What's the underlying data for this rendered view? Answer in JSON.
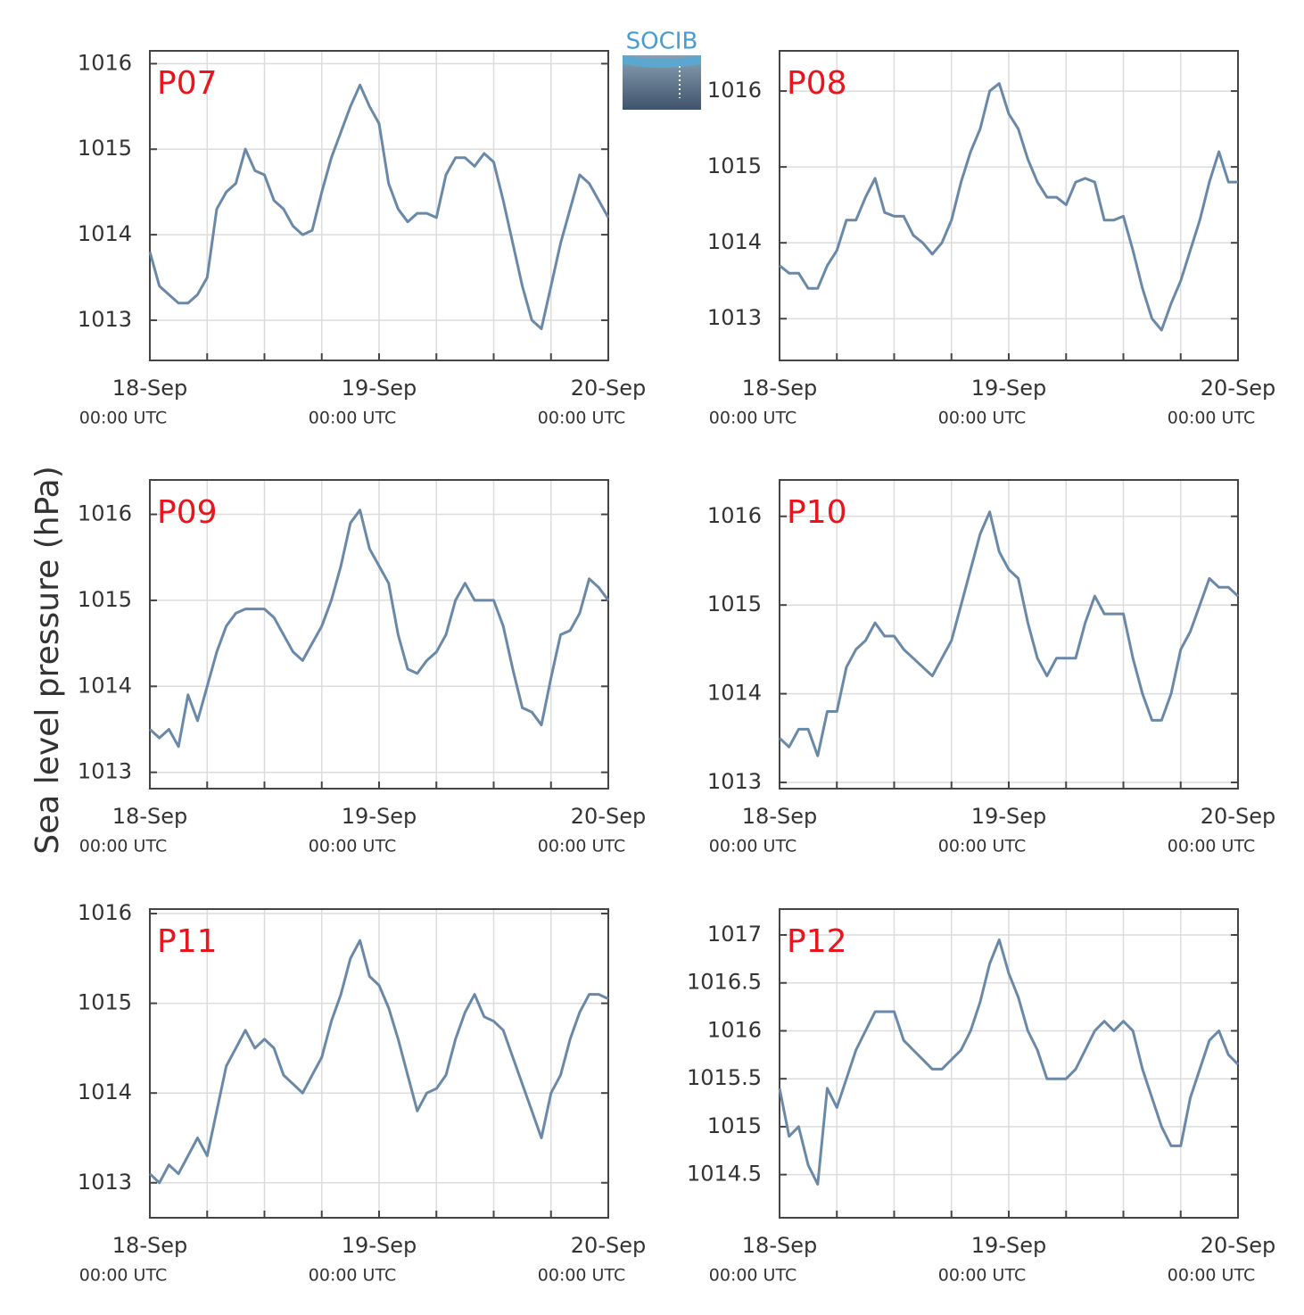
{
  "y_axis_label": "Sea level pressure (hPa)",
  "logo": "SOCIB",
  "chart_data": [
    {
      "type": "line",
      "title": "P07",
      "x": [
        0,
        1,
        2,
        3,
        4,
        5,
        6,
        7,
        8,
        9,
        10,
        11,
        12,
        13,
        14,
        15,
        16,
        17,
        18,
        19,
        20,
        21,
        22,
        23,
        24,
        25,
        26,
        27,
        28,
        29,
        30,
        31,
        32,
        33,
        34,
        35,
        36,
        37,
        38,
        39,
        40,
        41,
        42,
        43,
        44,
        45,
        46,
        47,
        48
      ],
      "series": [
        {
          "color": "#6a88a8",
          "values": [
            1013.8,
            1013.4,
            1013.3,
            1013.2,
            1013.2,
            1013.3,
            1013.5,
            1014.3,
            1014.5,
            1014.6,
            1015.0,
            1014.75,
            1014.7,
            1014.4,
            1014.3,
            1014.1,
            1014.0,
            1014.05,
            1014.5,
            1014.9,
            1015.2,
            1015.5,
            1015.75,
            1015.5,
            1015.3,
            1014.6,
            1014.3,
            1014.15,
            1014.25,
            1014.25,
            1014.2,
            1014.7,
            1014.9,
            1014.9,
            1014.8,
            1014.95,
            1014.85,
            1014.4,
            1013.9,
            1013.4,
            1013.0,
            1012.9,
            1013.4,
            1013.9,
            1014.3,
            1014.7,
            1014.6,
            1014.4,
            1014.2
          ]
        }
      ],
      "xlim": [
        0,
        48
      ],
      "xticks": [
        {
          "value": 0,
          "label": "18-Sep"
        },
        {
          "value": 24,
          "label": "19-Sep"
        },
        {
          "value": 48,
          "label": "20-Sep"
        }
      ],
      "xtick_sublabel": "00:00 UTC",
      "xminor": [
        6,
        12,
        18,
        30,
        36,
        42
      ],
      "ylim": [
        1012.53,
        1016.15
      ],
      "yticks": [
        1013,
        1014,
        1015,
        1016
      ],
      "grid": true
    },
    {
      "type": "line",
      "title": "P08",
      "x": [
        0,
        1,
        2,
        3,
        4,
        5,
        6,
        7,
        8,
        9,
        10,
        11,
        12,
        13,
        14,
        15,
        16,
        17,
        18,
        19,
        20,
        21,
        22,
        23,
        24,
        25,
        26,
        27,
        28,
        29,
        30,
        31,
        32,
        33,
        34,
        35,
        36,
        37,
        38,
        39,
        40,
        41,
        42,
        43,
        44,
        45,
        46,
        47,
        48
      ],
      "series": [
        {
          "color": "#6a88a8",
          "values": [
            1013.7,
            1013.6,
            1013.6,
            1013.4,
            1013.4,
            1013.7,
            1013.9,
            1014.3,
            1014.3,
            1014.6,
            1014.85,
            1014.4,
            1014.35,
            1014.35,
            1014.1,
            1014.0,
            1013.85,
            1014.0,
            1014.3,
            1014.8,
            1015.2,
            1015.5,
            1016.0,
            1016.1,
            1015.7,
            1015.5,
            1015.1,
            1014.8,
            1014.6,
            1014.6,
            1014.5,
            1014.8,
            1014.85,
            1014.8,
            1014.3,
            1014.3,
            1014.35,
            1013.9,
            1013.4,
            1013.0,
            1012.85,
            1013.2,
            1013.5,
            1013.9,
            1014.3,
            1014.8,
            1015.2,
            1014.8,
            1014.8
          ]
        }
      ],
      "xlim": [
        0,
        48
      ],
      "xticks": [
        {
          "value": 0,
          "label": "18-Sep"
        },
        {
          "value": 24,
          "label": "19-Sep"
        },
        {
          "value": 48,
          "label": "20-Sep"
        }
      ],
      "xtick_sublabel": "00:00 UTC",
      "xminor": [
        6,
        12,
        18,
        30,
        36,
        42
      ],
      "ylim": [
        1012.45,
        1016.53
      ],
      "yticks": [
        1013,
        1014,
        1015,
        1016
      ],
      "grid": true
    },
    {
      "type": "line",
      "title": "P09",
      "x": [
        0,
        1,
        2,
        3,
        4,
        5,
        6,
        7,
        8,
        9,
        10,
        11,
        12,
        13,
        14,
        15,
        16,
        17,
        18,
        19,
        20,
        21,
        22,
        23,
        24,
        25,
        26,
        27,
        28,
        29,
        30,
        31,
        32,
        33,
        34,
        35,
        36,
        37,
        38,
        39,
        40,
        41,
        42,
        43,
        44,
        45,
        46,
        47,
        48
      ],
      "series": [
        {
          "color": "#6a88a8",
          "values": [
            1013.5,
            1013.4,
            1013.5,
            1013.3,
            1013.9,
            1013.6,
            1014.0,
            1014.4,
            1014.7,
            1014.85,
            1014.9,
            1014.9,
            1014.9,
            1014.8,
            1014.6,
            1014.4,
            1014.3,
            1014.5,
            1014.7,
            1015.0,
            1015.4,
            1015.9,
            1016.05,
            1015.6,
            1015.4,
            1015.2,
            1014.6,
            1014.2,
            1014.15,
            1014.3,
            1014.4,
            1014.6,
            1015.0,
            1015.2,
            1015.0,
            1015.0,
            1015.0,
            1014.7,
            1014.2,
            1013.75,
            1013.7,
            1013.55,
            1014.1,
            1014.6,
            1014.65,
            1014.85,
            1015.25,
            1015.15,
            1015.0
          ]
        }
      ],
      "xlim": [
        0,
        48
      ],
      "xticks": [
        {
          "value": 0,
          "label": "18-Sep"
        },
        {
          "value": 24,
          "label": "19-Sep"
        },
        {
          "value": 48,
          "label": "20-Sep"
        }
      ],
      "xtick_sublabel": "00:00 UTC",
      "xminor": [
        6,
        12,
        18,
        30,
        36,
        42
      ],
      "ylim": [
        1012.81,
        1016.4
      ],
      "yticks": [
        1013,
        1014,
        1015,
        1016
      ],
      "grid": true
    },
    {
      "type": "line",
      "title": "P10",
      "x": [
        0,
        1,
        2,
        3,
        4,
        5,
        6,
        7,
        8,
        9,
        10,
        11,
        12,
        13,
        14,
        15,
        16,
        17,
        18,
        19,
        20,
        21,
        22,
        23,
        24,
        25,
        26,
        27,
        28,
        29,
        30,
        31,
        32,
        33,
        34,
        35,
        36,
        37,
        38,
        39,
        40,
        41,
        42,
        43,
        44,
        45,
        46,
        47,
        48
      ],
      "series": [
        {
          "color": "#6a88a8",
          "values": [
            1013.5,
            1013.4,
            1013.6,
            1013.6,
            1013.3,
            1013.8,
            1013.8,
            1014.3,
            1014.5,
            1014.6,
            1014.8,
            1014.65,
            1014.65,
            1014.5,
            1014.4,
            1014.3,
            1014.2,
            1014.4,
            1014.6,
            1015.0,
            1015.4,
            1015.8,
            1016.05,
            1015.6,
            1015.4,
            1015.3,
            1014.8,
            1014.4,
            1014.2,
            1014.4,
            1014.4,
            1014.4,
            1014.8,
            1015.1,
            1014.9,
            1014.9,
            1014.9,
            1014.4,
            1014.0,
            1013.7,
            1013.7,
            1014.0,
            1014.5,
            1014.7,
            1015.0,
            1015.3,
            1015.2,
            1015.2,
            1015.1
          ]
        }
      ],
      "xlim": [
        0,
        48
      ],
      "xticks": [
        {
          "value": 0,
          "label": "18-Sep"
        },
        {
          "value": 24,
          "label": "19-Sep"
        },
        {
          "value": 48,
          "label": "20-Sep"
        }
      ],
      "xtick_sublabel": "00:00 UTC",
      "xminor": [
        6,
        12,
        18,
        30,
        36,
        42
      ],
      "ylim": [
        1012.93,
        1016.41
      ],
      "yticks": [
        1013,
        1014,
        1015,
        1016
      ],
      "grid": true
    },
    {
      "type": "line",
      "title": "P11",
      "x": [
        0,
        1,
        2,
        3,
        4,
        5,
        6,
        7,
        8,
        9,
        10,
        11,
        12,
        13,
        14,
        15,
        16,
        17,
        18,
        19,
        20,
        21,
        22,
        23,
        24,
        25,
        26,
        27,
        28,
        29,
        30,
        31,
        32,
        33,
        34,
        35,
        36,
        37,
        38,
        39,
        40,
        41,
        42,
        43,
        44,
        45,
        46,
        47,
        48
      ],
      "series": [
        {
          "color": "#6a88a8",
          "values": [
            1013.1,
            1013.0,
            1013.2,
            1013.1,
            1013.3,
            1013.5,
            1013.3,
            1013.8,
            1014.3,
            1014.5,
            1014.7,
            1014.5,
            1014.6,
            1014.5,
            1014.2,
            1014.1,
            1014.0,
            1014.2,
            1014.4,
            1014.8,
            1015.1,
            1015.5,
            1015.7,
            1015.3,
            1015.2,
            1014.95,
            1014.6,
            1014.2,
            1013.8,
            1014.0,
            1014.05,
            1014.2,
            1014.6,
            1014.9,
            1015.1,
            1014.85,
            1014.8,
            1014.7,
            1014.4,
            1014.1,
            1013.8,
            1013.5,
            1014.0,
            1014.2,
            1014.6,
            1014.9,
            1015.1,
            1015.1,
            1015.05
          ]
        }
      ],
      "xlim": [
        0,
        48
      ],
      "xticks": [
        {
          "value": 0,
          "label": "18-Sep"
        },
        {
          "value": 24,
          "label": "19-Sep"
        },
        {
          "value": 48,
          "label": "20-Sep"
        }
      ],
      "xtick_sublabel": "00:00 UTC",
      "xminor": [
        6,
        12,
        18,
        30,
        36,
        42
      ],
      "ylim": [
        1012.61,
        1016.05
      ],
      "yticks": [
        1013,
        1014,
        1015,
        1016
      ],
      "grid": true
    },
    {
      "type": "line",
      "title": "P12",
      "x": [
        0,
        1,
        2,
        3,
        4,
        5,
        6,
        7,
        8,
        9,
        10,
        11,
        12,
        13,
        14,
        15,
        16,
        17,
        18,
        19,
        20,
        21,
        22,
        23,
        24,
        25,
        26,
        27,
        28,
        29,
        30,
        31,
        32,
        33,
        34,
        35,
        36,
        37,
        38,
        39,
        40,
        41,
        42,
        43,
        44,
        45,
        46,
        47,
        48
      ],
      "series": [
        {
          "color": "#6a88a8",
          "values": [
            1015.4,
            1014.9,
            1015.0,
            1014.6,
            1014.4,
            1015.4,
            1015.2,
            1015.5,
            1015.8,
            1016.0,
            1016.2,
            1016.2,
            1016.2,
            1015.9,
            1015.8,
            1015.7,
            1015.6,
            1015.6,
            1015.7,
            1015.8,
            1016.0,
            1016.3,
            1016.7,
            1016.95,
            1016.6,
            1016.35,
            1016.0,
            1015.8,
            1015.5,
            1015.5,
            1015.5,
            1015.6,
            1015.8,
            1016.0,
            1016.1,
            1016.0,
            1016.1,
            1016.0,
            1015.6,
            1015.3,
            1015.0,
            1014.8,
            1014.8,
            1015.3,
            1015.6,
            1015.9,
            1016.0,
            1015.75,
            1015.65
          ]
        }
      ],
      "xlim": [
        0,
        48
      ],
      "xticks": [
        {
          "value": 0,
          "label": "18-Sep"
        },
        {
          "value": 24,
          "label": "19-Sep"
        },
        {
          "value": 48,
          "label": "20-Sep"
        }
      ],
      "xtick_sublabel": "00:00 UTC",
      "xminor": [
        6,
        12,
        18,
        30,
        36,
        42
      ],
      "ylim": [
        1014.05,
        1017.27
      ],
      "yticks": [
        1014.5,
        1015,
        1015.5,
        1016,
        1016.5,
        1017
      ],
      "grid": true
    }
  ]
}
